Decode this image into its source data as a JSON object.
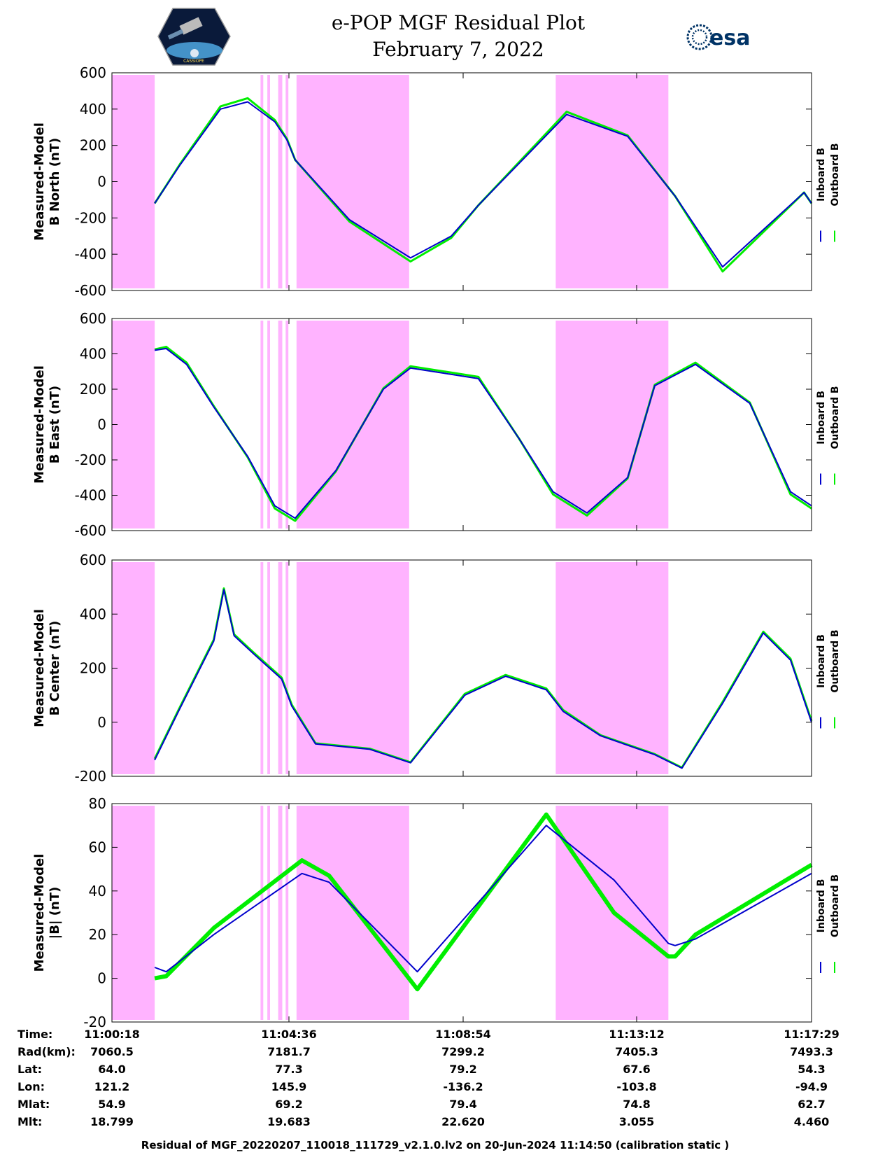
{
  "header": {
    "title": "e-POP MGF Residual Plot",
    "date": "February 7, 2022",
    "left_logo": "cassiope-mission-patch",
    "left_logo_text": "CASSIOPE",
    "right_logo": "esa",
    "right_logo_text": "esa"
  },
  "colors": {
    "inboard": "#0000cc",
    "outboard": "#00ee00",
    "shade": "#ffb3ff",
    "axis": "#000000"
  },
  "legend": {
    "inboard_label": "Inboard B",
    "outboard_label": "Outboard B"
  },
  "chart_data": [
    {
      "type": "line",
      "title": "",
      "ylabel": "Measured-Model",
      "ylabel2": "B North (nT)",
      "ylim": [
        -600,
        600
      ],
      "yticks": [
        600,
        400,
        200,
        0,
        -200,
        -400,
        -600
      ],
      "xlim_sec": [
        0,
        1031
      ],
      "series": [
        {
          "name": "Inboard B",
          "x": [
            63,
            100,
            160,
            200,
            240,
            258,
            270,
            350,
            440,
            500,
            540,
            670,
            760,
            830,
            900,
            1020,
            1031
          ],
          "y": [
            -120,
            90,
            400,
            440,
            330,
            230,
            120,
            -210,
            -420,
            -300,
            -130,
            370,
            250,
            -80,
            -470,
            -60,
            -120
          ]
        },
        {
          "name": "Outboard B",
          "x": [
            63,
            100,
            160,
            200,
            240,
            258,
            270,
            350,
            440,
            500,
            540,
            670,
            760,
            830,
            900,
            1020,
            1031
          ],
          "y": [
            -120,
            95,
            415,
            460,
            340,
            235,
            120,
            -220,
            -440,
            -310,
            -130,
            385,
            255,
            -80,
            -495,
            -60,
            -120
          ]
        }
      ],
      "shaded_intervals_sec": [
        [
          0,
          63
        ],
        [
          219,
          223
        ],
        [
          229,
          233
        ],
        [
          245,
          251
        ],
        [
          256,
          260
        ],
        [
          272,
          438
        ],
        [
          654,
          820
        ]
      ]
    },
    {
      "type": "line",
      "title": "",
      "ylabel": "Measured-Model",
      "ylabel2": "B East (nT)",
      "ylim": [
        -600,
        600
      ],
      "yticks": [
        600,
        400,
        200,
        0,
        -200,
        -400,
        -600
      ],
      "xlim_sec": [
        0,
        1031
      ],
      "series": [
        {
          "name": "Inboard B",
          "x": [
            63,
            80,
            110,
            150,
            200,
            240,
            270,
            330,
            400,
            440,
            540,
            600,
            650,
            700,
            760,
            800,
            860,
            940,
            1000,
            1031
          ],
          "y": [
            420,
            430,
            340,
            100,
            -180,
            -460,
            -530,
            -260,
            200,
            320,
            260,
            -80,
            -380,
            -500,
            -300,
            220,
            340,
            120,
            -380,
            -460
          ]
        },
        {
          "name": "Outboard B",
          "x": [
            63,
            80,
            110,
            150,
            200,
            240,
            270,
            330,
            400,
            440,
            540,
            600,
            650,
            700,
            760,
            800,
            860,
            940,
            1000,
            1031
          ],
          "y": [
            425,
            440,
            350,
            105,
            -185,
            -475,
            -545,
            -265,
            205,
            330,
            270,
            -80,
            -395,
            -515,
            -305,
            225,
            350,
            125,
            -395,
            -475
          ]
        }
      ],
      "shaded_intervals_sec": [
        [
          0,
          63
        ],
        [
          219,
          223
        ],
        [
          229,
          233
        ],
        [
          245,
          251
        ],
        [
          256,
          260
        ],
        [
          272,
          438
        ],
        [
          654,
          820
        ]
      ]
    },
    {
      "type": "line",
      "title": "",
      "ylabel": "Measured-Model",
      "ylabel2": "B Center (nT)",
      "ylim": [
        -200,
        600
      ],
      "yticks": [
        600,
        400,
        200,
        0,
        -200
      ],
      "xlim_sec": [
        0,
        1031
      ],
      "series": [
        {
          "name": "Inboard B",
          "x": [
            63,
            100,
            150,
            165,
            180,
            210,
            250,
            265,
            300,
            380,
            440,
            520,
            580,
            640,
            665,
            720,
            800,
            840,
            900,
            960,
            1000,
            1031
          ],
          "y": [
            -140,
            50,
            300,
            490,
            320,
            250,
            160,
            60,
            -80,
            -100,
            -150,
            100,
            170,
            120,
            40,
            -50,
            -120,
            -170,
            70,
            330,
            230,
            0
          ]
        },
        {
          "name": "Outboard B",
          "x": [
            63,
            100,
            150,
            165,
            180,
            210,
            250,
            265,
            300,
            380,
            440,
            520,
            580,
            640,
            665,
            720,
            800,
            840,
            900,
            960,
            1000,
            1031
          ],
          "y": [
            -135,
            55,
            305,
            495,
            325,
            255,
            165,
            65,
            -78,
            -98,
            -148,
            105,
            175,
            125,
            45,
            -48,
            -118,
            -168,
            75,
            335,
            235,
            5
          ]
        }
      ],
      "shaded_intervals_sec": [
        [
          0,
          63
        ],
        [
          219,
          223
        ],
        [
          229,
          233
        ],
        [
          245,
          251
        ],
        [
          256,
          260
        ],
        [
          272,
          438
        ],
        [
          654,
          820
        ]
      ]
    },
    {
      "type": "line",
      "title": "",
      "ylabel": "Measured-Model",
      "ylabel2": "|B| (nT)",
      "ylim": [
        -20,
        80
      ],
      "yticks": [
        80,
        60,
        40,
        20,
        0,
        -20
      ],
      "xlim_sec": [
        0,
        1031
      ],
      "series": [
        {
          "name": "Inboard B",
          "x": [
            63,
            80,
            150,
            280,
            320,
            450,
            640,
            740,
            820,
            830,
            860,
            1031
          ],
          "y": [
            5,
            3,
            20,
            48,
            44,
            3,
            70,
            45,
            16,
            15,
            18,
            48
          ]
        },
        {
          "name": "Outboard B",
          "x": [
            63,
            80,
            150,
            280,
            320,
            450,
            640,
            740,
            820,
            830,
            860,
            1031
          ],
          "y": [
            0,
            1,
            23,
            54,
            47,
            -5,
            75,
            30,
            10,
            10,
            20,
            52
          ]
        }
      ],
      "shaded_intervals_sec": [
        [
          0,
          63
        ],
        [
          219,
          223
        ],
        [
          229,
          233
        ],
        [
          245,
          251
        ],
        [
          256,
          260
        ],
        [
          272,
          438
        ],
        [
          654,
          820
        ]
      ]
    }
  ],
  "info_table": {
    "row_labels": [
      "Time:",
      "Rad(km):",
      "Lat:",
      "Lon:",
      "Mlat:",
      "Mlt:"
    ],
    "columns": [
      [
        "11:00:18",
        "7060.5",
        "64.0",
        "121.2",
        "54.9",
        "18.799"
      ],
      [
        "11:04:36",
        "7181.7",
        "77.3",
        "145.9",
        "69.2",
        "19.683"
      ],
      [
        "11:08:54",
        "7299.2",
        "79.2",
        "-136.2",
        "79.4",
        "22.620"
      ],
      [
        "11:13:12",
        "7405.3",
        "67.6",
        "-103.8",
        "74.8",
        "3.055"
      ],
      [
        "11:17:29",
        "7493.3",
        "54.3",
        "-94.9",
        "62.7",
        "4.460"
      ]
    ]
  },
  "footer": "Residual of MGF_20220207_110018_111729_v2.1.0.lv2 on 20-Jun-2024 11:14:50 (calibration static )"
}
